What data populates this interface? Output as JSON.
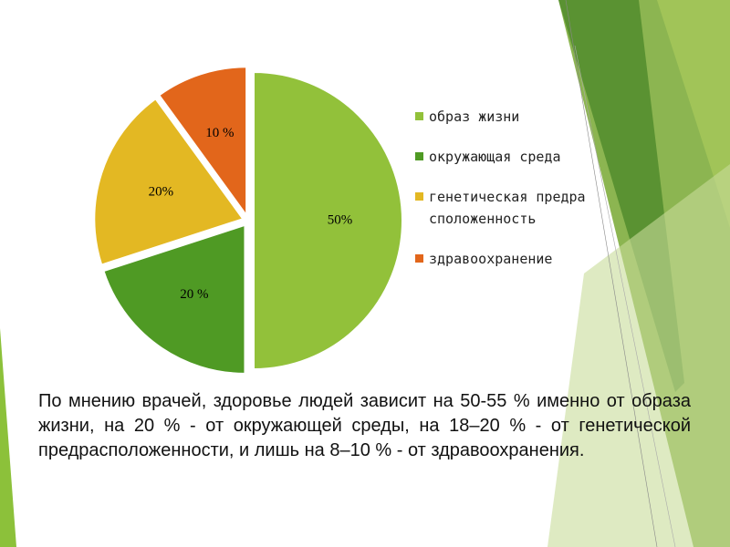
{
  "chart_data": {
    "type": "pie",
    "categories": [
      "образ жизни",
      "окружающая среда",
      "генетическая предрасположенность",
      "здравоохранение"
    ],
    "values": [
      50,
      20,
      20,
      10
    ],
    "value_labels": [
      "50%",
      "20 %",
      "20%",
      "10 %"
    ],
    "colors": [
      "#92c13a",
      "#4f9a24",
      "#e3b823",
      "#e2661b"
    ],
    "legend": "right"
  },
  "body": {
    "text": "По мнению врачей, здоровье людей зависит на 50-55 % именно от образа жизни, на 20 % - от окружающей среды, на 18–20 % - от генетической предрасположенности, и лишь на 8–10 % - от здравоохранения."
  }
}
